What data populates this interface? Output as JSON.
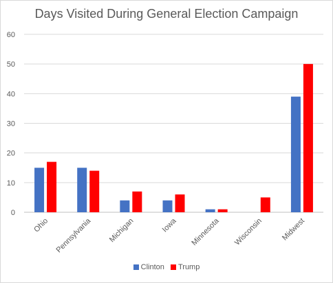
{
  "chart_data": {
    "type": "bar",
    "title": "Days Visited During General Election Campaign",
    "categories": [
      "Ohio",
      "Pennsylvania",
      "Michigan",
      "Iowa",
      "Minnesota",
      "Wisconsin",
      "Midwest"
    ],
    "series": [
      {
        "name": "Clinton",
        "color": "#4472C4",
        "values": [
          15,
          15,
          4,
          4,
          1,
          0,
          39
        ]
      },
      {
        "name": "Trump",
        "color": "#FF0000",
        "values": [
          17,
          14,
          7,
          6,
          1,
          5,
          50
        ]
      }
    ],
    "ylim": [
      0,
      60
    ],
    "yticks": [
      0,
      10,
      20,
      30,
      40,
      50,
      60
    ],
    "grid": true,
    "legend_position": "bottom"
  }
}
